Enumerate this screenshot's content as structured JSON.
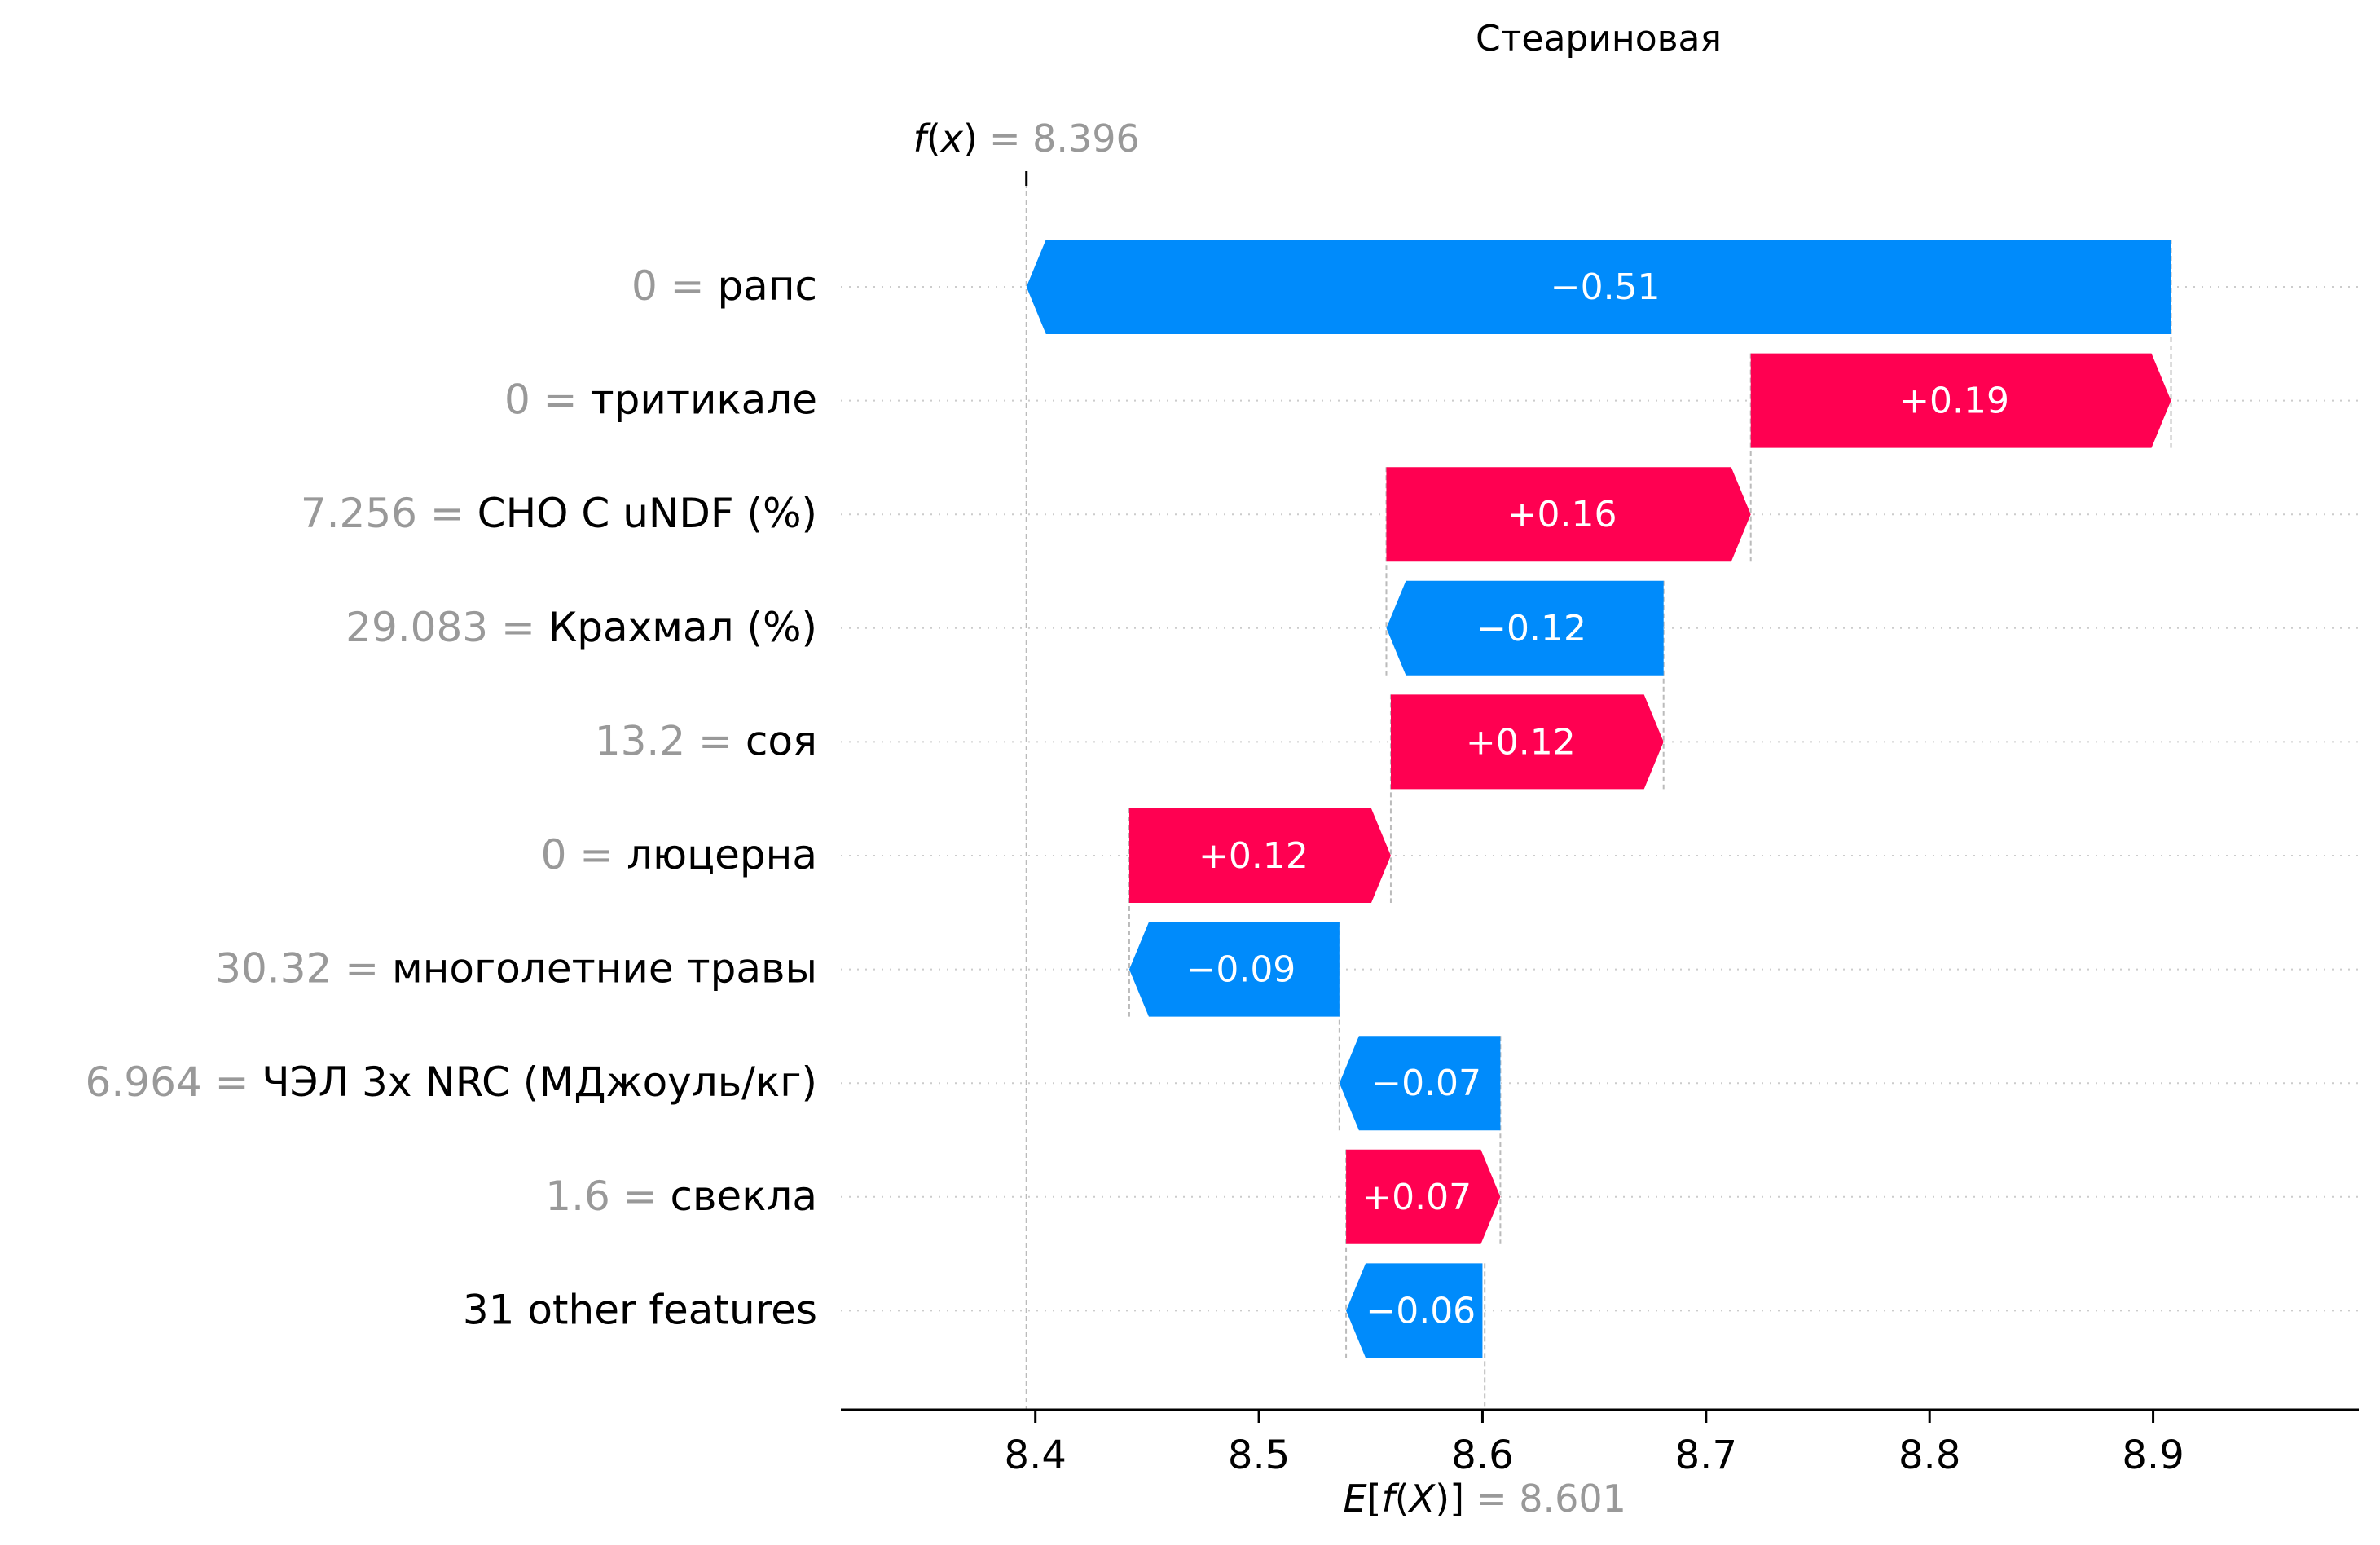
{
  "chart_data": {
    "type": "waterfall",
    "title": "Стеариновая",
    "fx": {
      "label_prefix": "f",
      "label_var": "x",
      "label_suffix": "",
      "value_text": "= 8.396",
      "value": 8.396
    },
    "efx": {
      "label_prefix": "E[f",
      "label_var": "X",
      "label_suffix": ")]",
      "value_text": "= 8.601",
      "value": 8.601
    },
    "xlim": [
      8.313,
      8.992
    ],
    "xticks": [
      {
        "value": 8.4,
        "label": "8.4"
      },
      {
        "value": 8.5,
        "label": "8.5"
      },
      {
        "value": 8.6,
        "label": "8.6"
      },
      {
        "value": 8.7,
        "label": "8.7"
      },
      {
        "value": 8.8,
        "label": "8.8"
      },
      {
        "value": 8.9,
        "label": "8.9"
      }
    ],
    "colors": {
      "positive": "#ff0051",
      "negative": "#008bfb",
      "feature_value": "#999999",
      "feature_name": "#000000"
    },
    "rows": [
      {
        "feature_value": "0",
        "eq": "=",
        "feature_name": "рапс",
        "contribution": -0.51,
        "label": "−0.51",
        "start": 8.908,
        "end": 8.396
      },
      {
        "feature_value": "0",
        "eq": "=",
        "feature_name": "тритикале",
        "contribution": 0.19,
        "label": "+0.19",
        "start": 8.72,
        "end": 8.908
      },
      {
        "feature_value": "7.256",
        "eq": "=",
        "feature_name": "CHO C uNDF (%)",
        "contribution": 0.16,
        "label": "+0.16",
        "start": 8.557,
        "end": 8.72
      },
      {
        "feature_value": "29.083",
        "eq": "=",
        "feature_name": "Крахмал (%)",
        "contribution": -0.12,
        "label": "−0.12",
        "start": 8.681,
        "end": 8.557
      },
      {
        "feature_value": "13.2",
        "eq": "=",
        "feature_name": "соя",
        "contribution": 0.12,
        "label": "+0.12",
        "start": 8.559,
        "end": 8.681
      },
      {
        "feature_value": "0",
        "eq": "=",
        "feature_name": "люцерна",
        "contribution": 0.12,
        "label": "+0.12",
        "start": 8.442,
        "end": 8.559
      },
      {
        "feature_value": "30.32",
        "eq": "=",
        "feature_name": "многолетние травы",
        "contribution": -0.09,
        "label": "−0.09",
        "start": 8.536,
        "end": 8.442
      },
      {
        "feature_value": "6.964",
        "eq": "=",
        "feature_name": "ЧЭЛ 3x NRC (МДжоуль/кг)",
        "contribution": -0.07,
        "label": "−0.07",
        "start": 8.608,
        "end": 8.536
      },
      {
        "feature_value": "1.6",
        "eq": "=",
        "feature_name": "свекла",
        "contribution": 0.07,
        "label": "+0.07",
        "start": 8.539,
        "end": 8.608
      },
      {
        "feature_value": "",
        "eq": "",
        "feature_name": "31 other features",
        "contribution": -0.06,
        "label": "−0.06",
        "start": 8.6,
        "end": 8.539
      }
    ]
  }
}
